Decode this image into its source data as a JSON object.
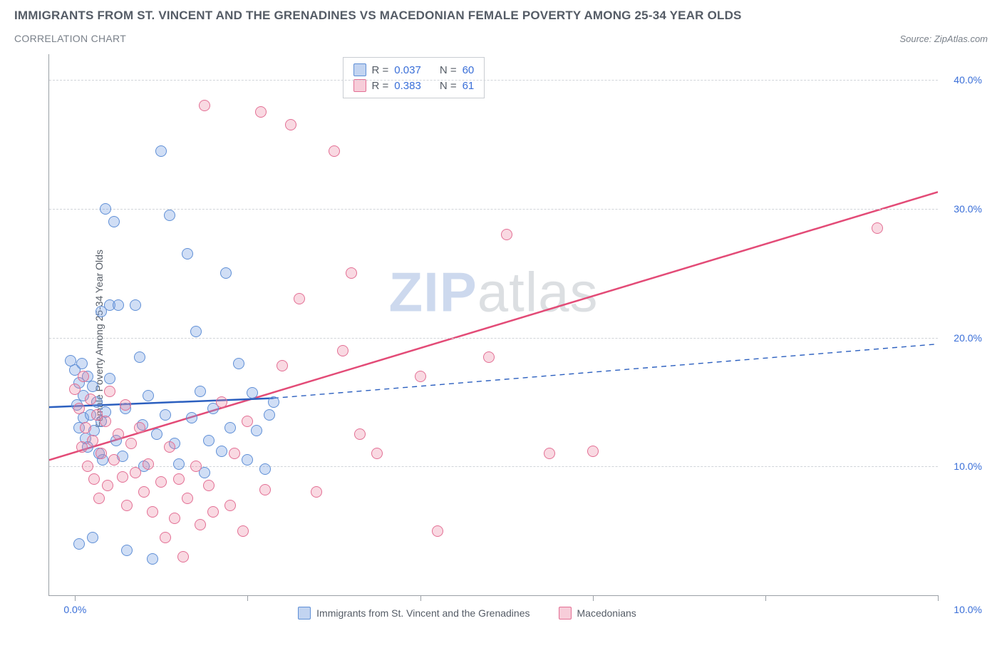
{
  "title": "IMMIGRANTS FROM ST. VINCENT AND THE GRENADINES VS MACEDONIAN FEMALE POVERTY AMONG 25-34 YEAR OLDS",
  "subtitle": "CORRELATION CHART",
  "source": "Source: ZipAtlas.com",
  "ylabel": "Female Poverty Among 25-34 Year Olds",
  "watermark_zip": "ZIP",
  "watermark_rest": "atlas",
  "chart": {
    "type": "scatter",
    "xlim": [
      -0.3,
      10.0
    ],
    "ylim": [
      0.0,
      42.0
    ],
    "x_ticks": [
      0,
      2,
      4,
      6,
      8,
      10
    ],
    "x_tick_labels": {
      "0": "0.0%",
      "10": "10.0%"
    },
    "y_ticks": [
      10,
      20,
      30,
      40
    ],
    "y_tick_labels": [
      "10.0%",
      "20.0%",
      "30.0%",
      "40.0%"
    ],
    "grid_color": "#d0d4d9",
    "axis_color": "#9aa0a6",
    "background_color": "#ffffff",
    "marker_size": 16,
    "series": [
      {
        "name": "Immigrants from St. Vincent and the Grenadines",
        "color_fill": "rgba(120,160,225,0.35)",
        "color_stroke": "#5f8fd6",
        "R": "0.037",
        "N": "60",
        "trend": {
          "x1": -0.3,
          "y1": 14.6,
          "x2": 2.3,
          "y2": 15.3,
          "x3": 10.0,
          "y3": 19.5,
          "solid_until_x": 2.3,
          "color": "#2b5fbf",
          "width_solid": 2.5,
          "width_dash": 1.4
        },
        "points": [
          [
            -0.05,
            18.2
          ],
          [
            0.0,
            17.5
          ],
          [
            0.02,
            14.8
          ],
          [
            0.05,
            16.5
          ],
          [
            0.05,
            13.0
          ],
          [
            0.08,
            18.0
          ],
          [
            0.1,
            15.5
          ],
          [
            0.1,
            13.8
          ],
          [
            0.12,
            12.2
          ],
          [
            0.15,
            17.0
          ],
          [
            0.15,
            11.5
          ],
          [
            0.18,
            14.0
          ],
          [
            0.2,
            16.2
          ],
          [
            0.22,
            12.8
          ],
          [
            0.25,
            15.0
          ],
          [
            0.28,
            11.0
          ],
          [
            0.3,
            13.5
          ],
          [
            0.3,
            22.0
          ],
          [
            0.32,
            10.5
          ],
          [
            0.35,
            14.2
          ],
          [
            0.35,
            30.0
          ],
          [
            0.4,
            22.5
          ],
          [
            0.4,
            16.8
          ],
          [
            0.45,
            29.0
          ],
          [
            0.48,
            12.0
          ],
          [
            0.5,
            22.5
          ],
          [
            0.55,
            10.8
          ],
          [
            0.58,
            14.5
          ],
          [
            0.6,
            3.5
          ],
          [
            0.7,
            22.5
          ],
          [
            0.75,
            18.5
          ],
          [
            0.78,
            13.2
          ],
          [
            0.8,
            10.0
          ],
          [
            0.85,
            15.5
          ],
          [
            0.9,
            2.8
          ],
          [
            0.95,
            12.5
          ],
          [
            1.0,
            34.5
          ],
          [
            1.05,
            14.0
          ],
          [
            1.1,
            29.5
          ],
          [
            1.15,
            11.8
          ],
          [
            1.2,
            10.2
          ],
          [
            1.3,
            26.5
          ],
          [
            1.35,
            13.8
          ],
          [
            1.4,
            20.5
          ],
          [
            1.45,
            15.8
          ],
          [
            1.5,
            9.5
          ],
          [
            1.55,
            12.0
          ],
          [
            1.6,
            14.5
          ],
          [
            1.7,
            11.2
          ],
          [
            1.75,
            25.0
          ],
          [
            1.8,
            13.0
          ],
          [
            1.9,
            18.0
          ],
          [
            2.0,
            10.5
          ],
          [
            2.05,
            15.7
          ],
          [
            2.1,
            12.8
          ],
          [
            2.2,
            9.8
          ],
          [
            2.25,
            14.0
          ],
          [
            2.3,
            15.0
          ],
          [
            0.05,
            4.0
          ],
          [
            0.2,
            4.5
          ]
        ]
      },
      {
        "name": "Macedonians",
        "color_fill": "rgba(235,130,160,0.30)",
        "color_stroke": "#e36f94",
        "R": "0.383",
        "N": "61",
        "trend": {
          "x1": -0.3,
          "y1": 10.5,
          "x2": 10.0,
          "y2": 31.3,
          "color": "#e34b77",
          "width": 2.5
        },
        "points": [
          [
            0.0,
            16.0
          ],
          [
            0.05,
            14.5
          ],
          [
            0.08,
            11.5
          ],
          [
            0.1,
            17.0
          ],
          [
            0.12,
            13.0
          ],
          [
            0.15,
            10.0
          ],
          [
            0.18,
            15.2
          ],
          [
            0.2,
            12.0
          ],
          [
            0.22,
            9.0
          ],
          [
            0.25,
            14.0
          ],
          [
            0.28,
            7.5
          ],
          [
            0.3,
            11.0
          ],
          [
            0.35,
            13.5
          ],
          [
            0.38,
            8.5
          ],
          [
            0.4,
            15.8
          ],
          [
            0.45,
            10.5
          ],
          [
            0.5,
            12.5
          ],
          [
            0.55,
            9.2
          ],
          [
            0.58,
            14.8
          ],
          [
            0.6,
            7.0
          ],
          [
            0.65,
            11.8
          ],
          [
            0.7,
            9.5
          ],
          [
            0.75,
            13.0
          ],
          [
            0.8,
            8.0
          ],
          [
            0.85,
            10.2
          ],
          [
            0.9,
            6.5
          ],
          [
            1.0,
            8.8
          ],
          [
            1.05,
            4.5
          ],
          [
            1.1,
            11.5
          ],
          [
            1.15,
            6.0
          ],
          [
            1.2,
            9.0
          ],
          [
            1.25,
            3.0
          ],
          [
            1.3,
            7.5
          ],
          [
            1.4,
            10.0
          ],
          [
            1.45,
            5.5
          ],
          [
            1.5,
            38.0
          ],
          [
            1.55,
            8.5
          ],
          [
            1.6,
            6.5
          ],
          [
            1.7,
            15.0
          ],
          [
            1.8,
            7.0
          ],
          [
            1.85,
            11.0
          ],
          [
            1.95,
            5.0
          ],
          [
            2.0,
            13.5
          ],
          [
            2.15,
            37.5
          ],
          [
            2.2,
            8.2
          ],
          [
            2.4,
            17.8
          ],
          [
            2.5,
            36.5
          ],
          [
            2.6,
            23.0
          ],
          [
            2.8,
            8.0
          ],
          [
            3.0,
            34.5
          ],
          [
            3.1,
            19.0
          ],
          [
            3.2,
            25.0
          ],
          [
            3.3,
            12.5
          ],
          [
            3.5,
            11.0
          ],
          [
            4.0,
            17.0
          ],
          [
            4.2,
            5.0
          ],
          [
            4.8,
            18.5
          ],
          [
            5.0,
            28.0
          ],
          [
            5.5,
            11.0
          ],
          [
            6.0,
            11.2
          ],
          [
            9.3,
            28.5
          ]
        ]
      }
    ]
  },
  "legend_top": [
    {
      "swatch": "blue",
      "r_label": "R =",
      "r_val": "0.037",
      "n_label": "N =",
      "n_val": "60"
    },
    {
      "swatch": "pink",
      "r_label": "R =",
      "r_val": "0.383",
      "n_label": "N =",
      "n_val": " 61"
    }
  ],
  "legend_bottom": [
    {
      "swatch": "blue",
      "label": "Immigrants from St. Vincent and the Grenadines"
    },
    {
      "swatch": "pink",
      "label": "Macedonians"
    }
  ]
}
